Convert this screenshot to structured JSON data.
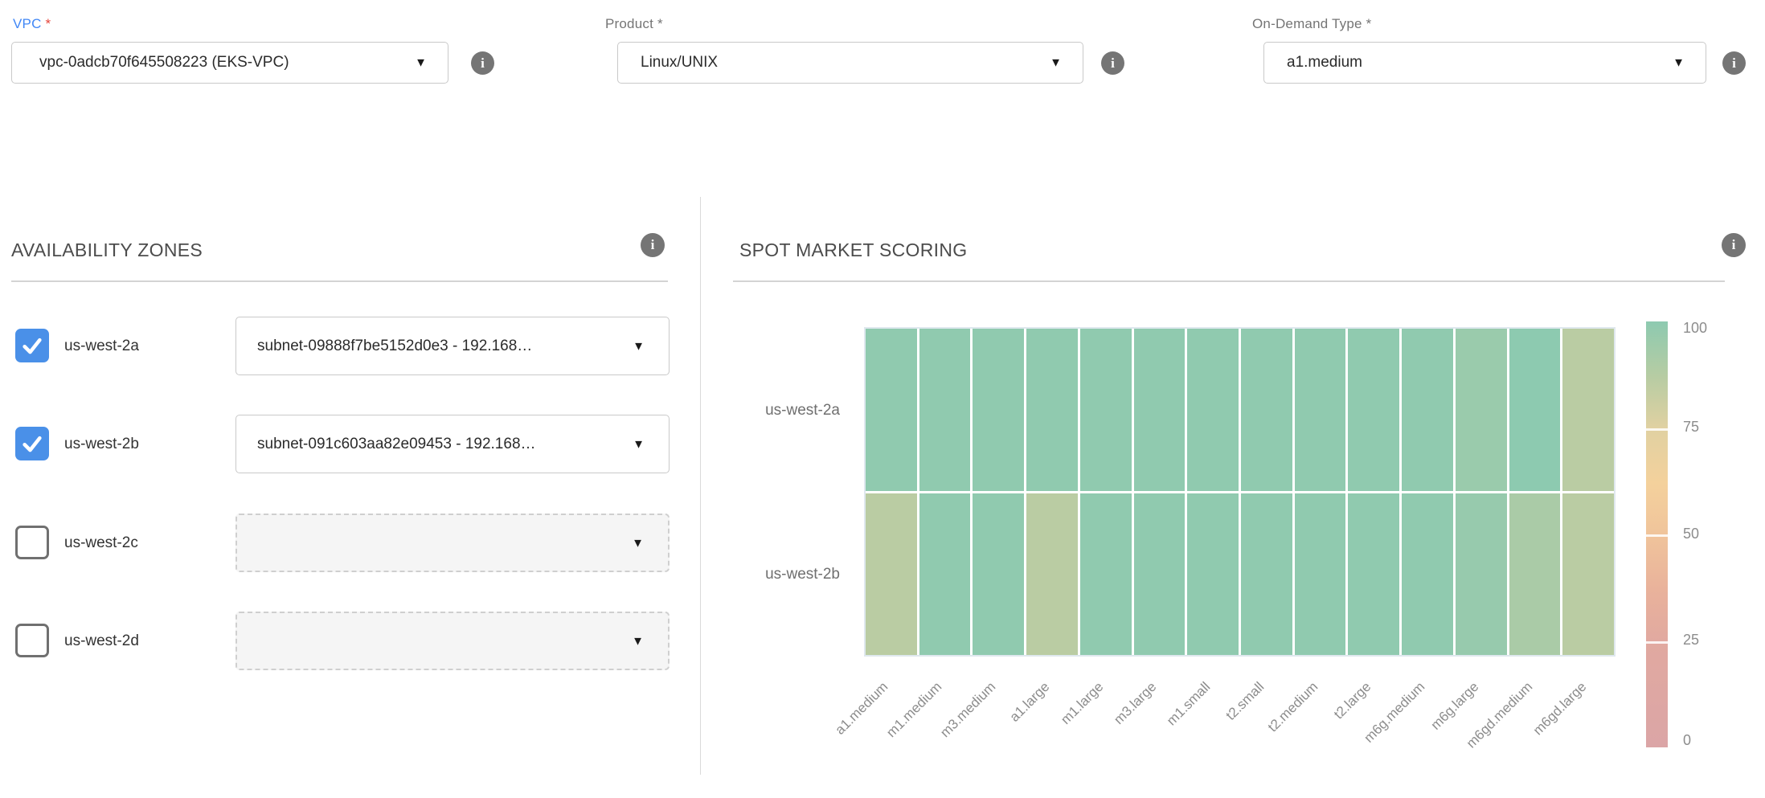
{
  "icons": {
    "info": "i",
    "caret": "▼",
    "check": "check-mark"
  },
  "colors": {
    "label_blue": "#4187f6",
    "required_red": "#e5453c",
    "checkbox_blue": "#4a90e8",
    "info_gray": "#757575",
    "heatmap_teal": "#8dcab0",
    "heatmap_sage": "#bacca3",
    "heatmap_pink": "#dba5a6"
  },
  "fields": {
    "vpc": {
      "label": "VPC",
      "required": "*",
      "value": "vpc-0adcb70f645508223 (EKS-VPC)"
    },
    "product": {
      "label": "Product",
      "required": "*",
      "value": "Linux/UNIX"
    },
    "on_demand_type": {
      "label": "On-Demand Type",
      "required": "*",
      "value": "a1.medium"
    }
  },
  "availability_zones": {
    "title": "AVAILABILITY ZONES",
    "rows": [
      {
        "zone": "us-west-2a",
        "checked": true,
        "subnet": "subnet-09888f7be5152d0e3 - 192.168…"
      },
      {
        "zone": "us-west-2b",
        "checked": true,
        "subnet": "subnet-091c603aa82e09453 - 192.168…"
      },
      {
        "zone": "us-west-2c",
        "checked": false,
        "subnet": ""
      },
      {
        "zone": "us-west-2d",
        "checked": false,
        "subnet": ""
      }
    ]
  },
  "spot_market": {
    "title": "SPOT MARKET SCORING"
  },
  "chart_data": {
    "type": "heatmap",
    "title": "SPOT MARKET SCORING",
    "x_categories": [
      "a1.medium",
      "m1.medium",
      "m3.medium",
      "a1.large",
      "m1.large",
      "m3.large",
      "m1.small",
      "t2.small",
      "t2.medium",
      "t2.large",
      "m6g.medium",
      "m6g.large",
      "m6gd.medium",
      "m6gd.large"
    ],
    "y_categories": [
      "us-west-2a",
      "us-west-2b"
    ],
    "series": [
      {
        "name": "us-west-2a",
        "values": [
          99,
          99,
          99,
          99,
          99,
          99,
          99,
          99,
          99,
          99,
          99,
          96,
          100,
          86
        ]
      },
      {
        "name": "us-west-2b",
        "values": [
          86,
          99,
          99,
          86,
          99,
          99,
          99,
          99,
          99,
          99,
          99,
          97,
          91,
          86
        ]
      }
    ],
    "scale_range": [
      0,
      100
    ],
    "colorbar_ticks": [
      "100",
      "75",
      "50",
      "25",
      "0"
    ],
    "legend_position": "right",
    "grid": true,
    "colormap_stops": [
      [
        0,
        "#dba5a6"
      ],
      [
        25,
        "#e1a9a0"
      ],
      [
        37,
        "#e9b29b"
      ],
      [
        50,
        "#f0c49b"
      ],
      [
        62,
        "#f4d19c"
      ],
      [
        75,
        "#e0d1a2"
      ],
      [
        87,
        "#b7cca3"
      ],
      [
        100,
        "#8dcab0"
      ]
    ]
  }
}
